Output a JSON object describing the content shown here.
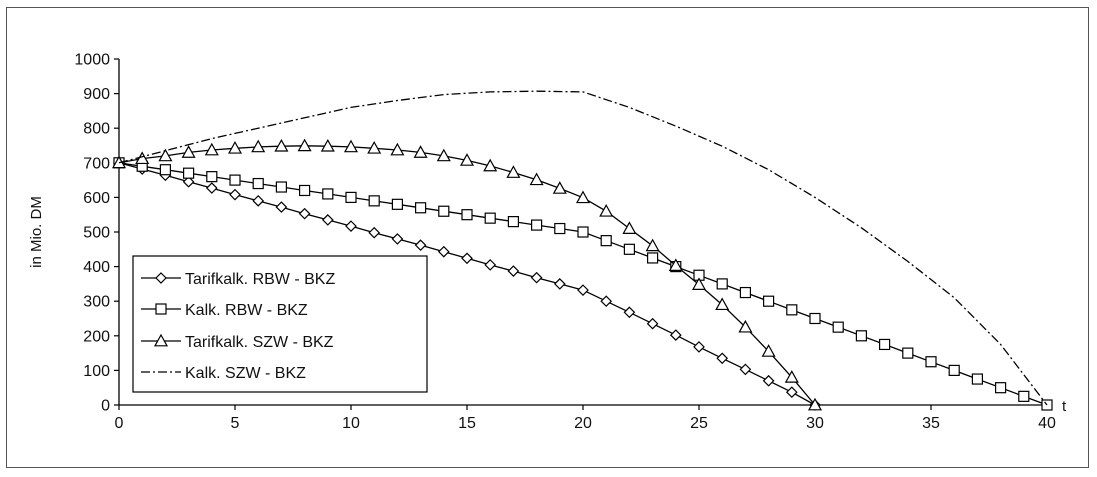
{
  "chart_data": {
    "type": "line",
    "title": "",
    "xlabel": "t",
    "ylabel": "in Mio. DM",
    "xlim": [
      0,
      40
    ],
    "ylim": [
      0,
      1000
    ],
    "xticks": [
      0,
      5,
      10,
      15,
      20,
      25,
      30,
      35,
      40
    ],
    "yticks": [
      0,
      100,
      200,
      300,
      400,
      500,
      600,
      700,
      800,
      900,
      1000
    ],
    "grid": false,
    "legend_position": "left",
    "series": [
      {
        "name": "Tarifkalk. RBW - BKZ",
        "marker": "diamond",
        "dash": "solid",
        "x": [
          0,
          1,
          2,
          3,
          4,
          5,
          6,
          7,
          8,
          9,
          10,
          11,
          12,
          13,
          14,
          15,
          16,
          17,
          18,
          19,
          20,
          21,
          22,
          23,
          24,
          25,
          26,
          27,
          28,
          29,
          30
        ],
        "y": [
          700,
          682,
          664,
          645,
          627,
          608,
          590,
          572,
          553,
          535,
          517,
          498,
          480,
          462,
          443,
          424,
          405,
          387,
          368,
          350,
          332,
          300,
          268,
          235,
          202,
          168,
          135,
          103,
          70,
          37,
          0
        ]
      },
      {
        "name": "Kalk. RBW - BKZ",
        "marker": "square",
        "dash": "solid",
        "x": [
          0,
          1,
          2,
          3,
          4,
          5,
          6,
          7,
          8,
          9,
          10,
          11,
          12,
          13,
          14,
          15,
          16,
          17,
          18,
          19,
          20,
          21,
          22,
          23,
          24,
          25,
          26,
          27,
          28,
          29,
          30,
          31,
          32,
          33,
          34,
          35,
          36,
          37,
          38,
          39,
          40
        ],
        "y": [
          700,
          690,
          680,
          670,
          660,
          650,
          640,
          630,
          620,
          610,
          600,
          590,
          580,
          570,
          560,
          550,
          540,
          530,
          520,
          510,
          500,
          475,
          450,
          425,
          400,
          375,
          350,
          325,
          300,
          275,
          250,
          225,
          200,
          175,
          150,
          125,
          100,
          75,
          50,
          25,
          0
        ]
      },
      {
        "name": "Tarifkalk. SZW - BKZ",
        "marker": "triangle",
        "dash": "solid",
        "x": [
          0,
          1,
          2,
          3,
          4,
          5,
          6,
          7,
          8,
          9,
          10,
          11,
          12,
          13,
          14,
          15,
          16,
          17,
          18,
          19,
          20,
          21,
          22,
          23,
          24,
          25,
          26,
          27,
          28,
          29,
          30
        ],
        "y": [
          700,
          712,
          720,
          730,
          737,
          742,
          746,
          748,
          749,
          748,
          746,
          742,
          737,
          730,
          720,
          707,
          691,
          672,
          651,
          626,
          599,
          560,
          510,
          460,
          403,
          348,
          290,
          225,
          155,
          80,
          0
        ]
      },
      {
        "name": "Kalk. SZW - BKZ",
        "marker": "none",
        "dash": "dashed",
        "x": [
          0,
          2,
          4,
          6,
          8,
          10,
          12,
          14,
          16,
          18,
          20,
          22,
          24,
          26,
          28,
          30,
          32,
          34,
          36,
          38,
          40
        ],
        "y": [
          700,
          735,
          770,
          800,
          830,
          860,
          880,
          897,
          905,
          907,
          905,
          860,
          806,
          748,
          680,
          600,
          512,
          415,
          310,
          175,
          0
        ]
      }
    ]
  }
}
